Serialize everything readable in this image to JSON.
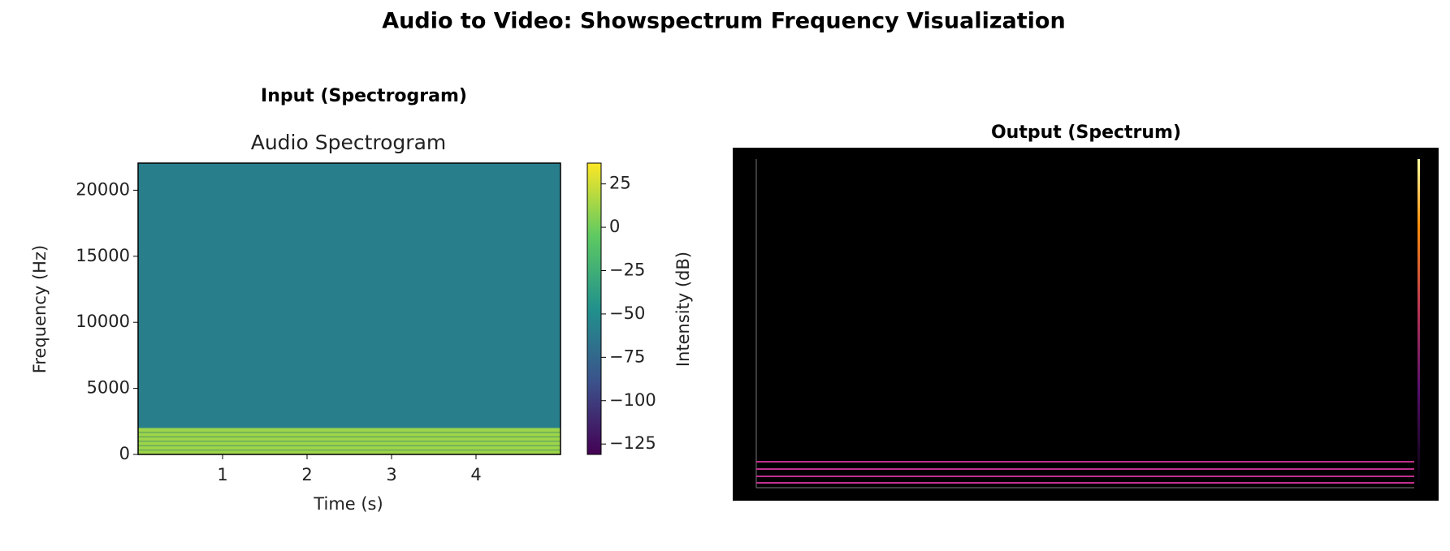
{
  "title": "Audio to Video: Showspectrum Frequency Visualization",
  "chart_data": [
    {
      "type": "spectrogram",
      "panel_title": "Input (Spectrogram)",
      "title": "Audio Spectrogram",
      "x_label": "Time (s)",
      "y_label": "Frequency (Hz)",
      "xlim": [
        0,
        5
      ],
      "xticks": [
        1,
        2,
        3,
        4
      ],
      "ylim": [
        0,
        22050
      ],
      "yticks": [
        0,
        5000,
        10000,
        15000,
        20000
      ],
      "colormap": "viridis",
      "background_db": -60,
      "bands": [
        {
          "from": 0,
          "to": 2000,
          "db": 12
        }
      ],
      "colorbar": {
        "label": "Intensity (dB)",
        "lim": [
          -131,
          37
        ],
        "ticks": [
          25,
          0,
          {
            "value": -25,
            "label": "−25"
          },
          {
            "value": -50,
            "label": "−50"
          },
          {
            "value": -75,
            "label": "−75"
          },
          {
            "value": -100,
            "label": "−100"
          },
          {
            "value": -125,
            "label": "−125"
          }
        ]
      }
    },
    {
      "type": "image",
      "panel_title": "Output (Spectrum)"
    }
  ]
}
